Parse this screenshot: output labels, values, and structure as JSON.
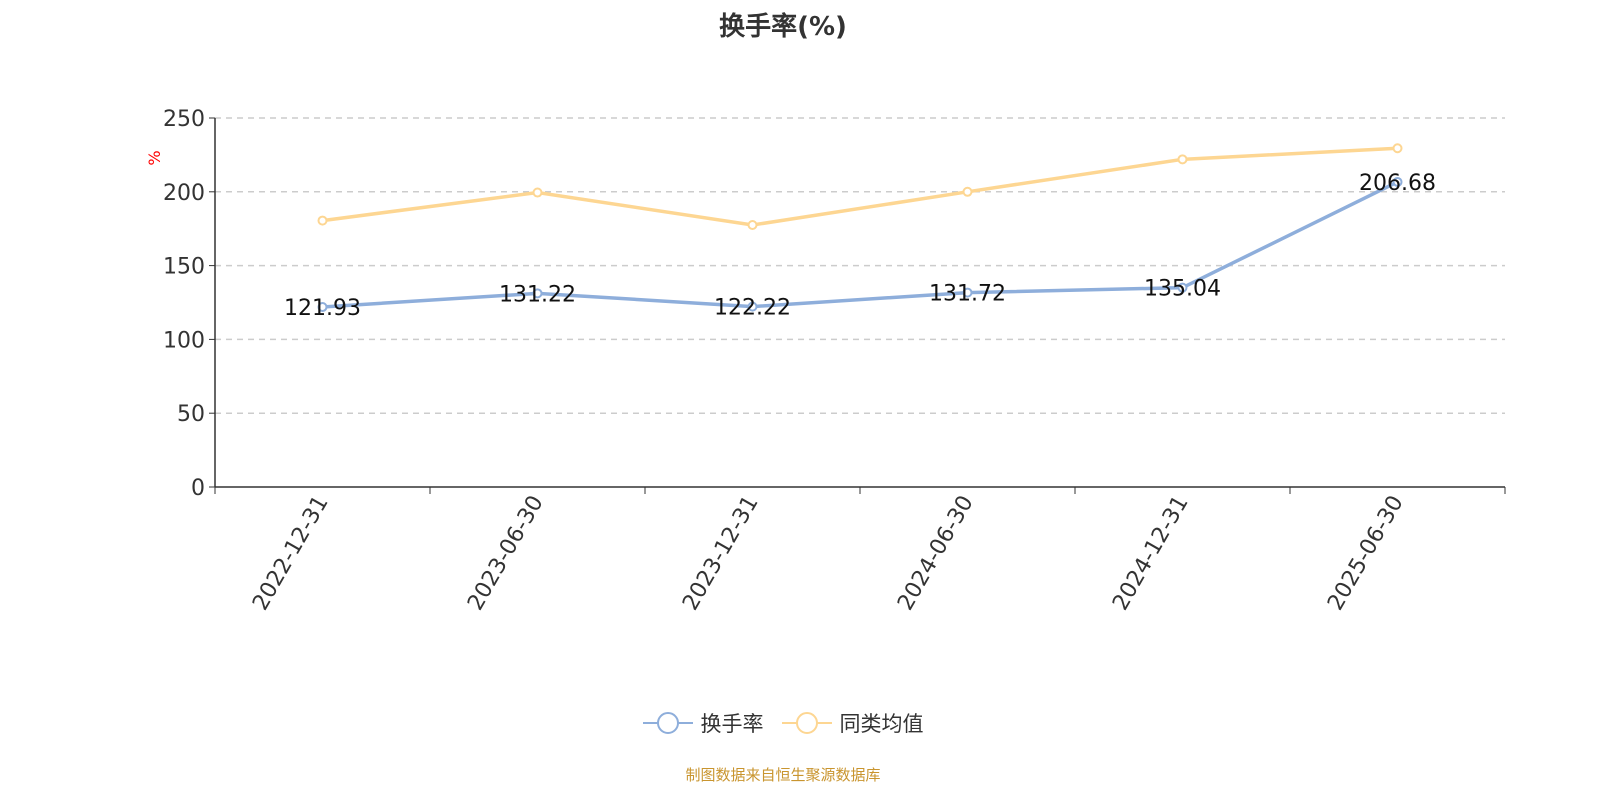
{
  "chart_data": {
    "type": "line",
    "title": "换手率(%)",
    "ylabel": "%",
    "ylim": [
      0,
      250
    ],
    "yticks": [
      0,
      50,
      100,
      150,
      200,
      250
    ],
    "grid": true,
    "legend_placement": "bottom",
    "categories": [
      "2022-12-31",
      "2023-06-30",
      "2023-12-31",
      "2024-06-30",
      "2024-12-31",
      "2025-06-30"
    ],
    "series": [
      {
        "name": "换手率",
        "color": "#8eaedb",
        "values": [
          121.93,
          131.22,
          122.22,
          131.72,
          135.04,
          206.68
        ],
        "labels": [
          "121.93",
          "131.22",
          "122.22",
          "131.72",
          "135.04",
          "206.68"
        ]
      },
      {
        "name": "同类均值",
        "color": "#fdd692",
        "values": [
          180.5,
          199.5,
          177.5,
          200,
          222,
          229.5
        ]
      }
    ]
  },
  "source": "制图数据来自恒生聚源数据库"
}
